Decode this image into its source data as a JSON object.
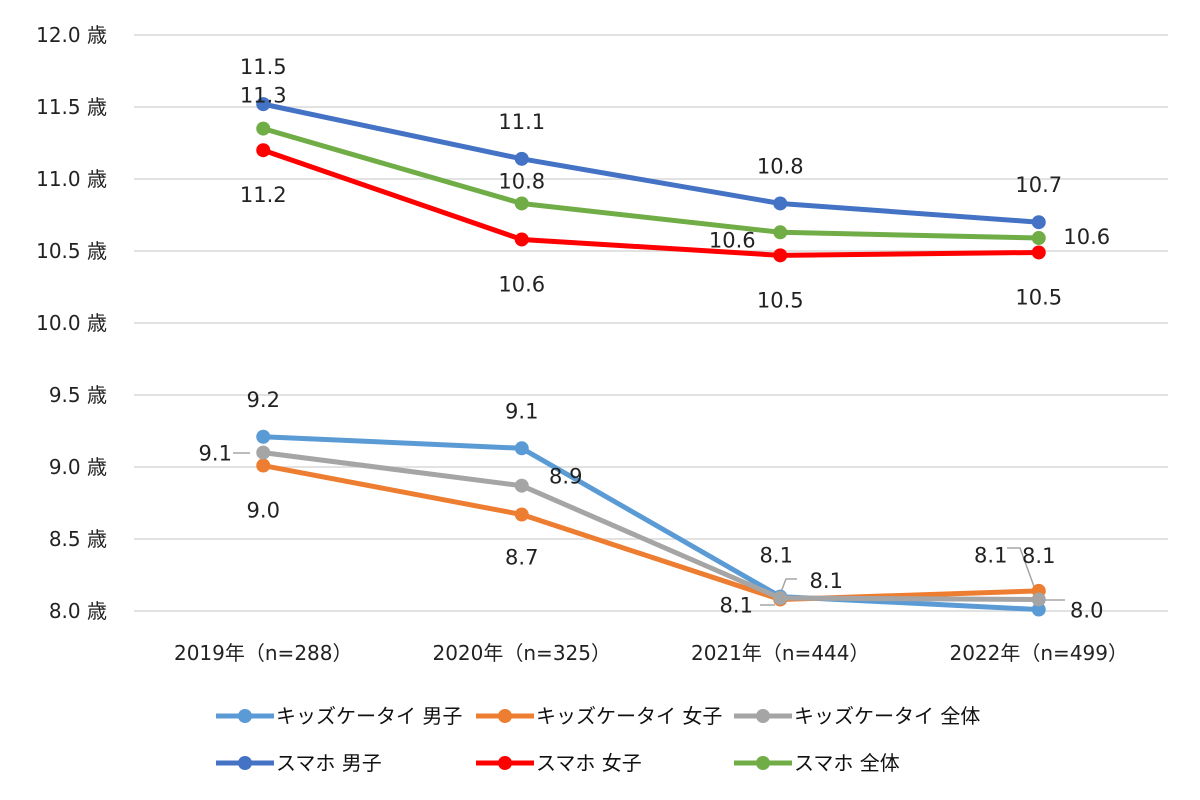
{
  "chart_data": {
    "type": "line",
    "title": "",
    "xlabel": "",
    "ylabel": "",
    "y_unit_suffix": " 歳",
    "ylim": [
      8.0,
      12.0
    ],
    "y_ticks": [
      "8.0 歳",
      "8.5 歳",
      "9.0 歳",
      "9.5 歳",
      "10.0 歳",
      "10.5 歳",
      "11.0 歳",
      "11.5 歳",
      "12.0 歳"
    ],
    "y_tick_values": [
      8.0,
      8.5,
      9.0,
      9.5,
      10.0,
      10.5,
      11.0,
      11.5,
      12.0
    ],
    "grid": true,
    "legend_position": "bottom",
    "categories": [
      "2019年（n=288）",
      "2020年（n=325）",
      "2021年（n=444）",
      "2022年（n=499）"
    ],
    "series": [
      {
        "name": "キッズケータイ 男子",
        "color": "#5B9BD5",
        "values": [
          9.21,
          9.13,
          8.1,
          8.01
        ],
        "labels": [
          "9.2",
          "9.1",
          "8.1",
          "8.0"
        ]
      },
      {
        "name": "キッズケータイ 女子",
        "color": "#ED7D31",
        "values": [
          9.01,
          8.67,
          8.08,
          8.14
        ],
        "labels": [
          "9.0",
          "8.7",
          "8.1",
          "8.1"
        ]
      },
      {
        "name": "キッズケータイ 全体",
        "color": "#A5A5A5",
        "values": [
          9.1,
          8.87,
          8.09,
          8.08
        ],
        "labels": [
          "9.1",
          "8.9",
          "8.1",
          "8.1"
        ]
      },
      {
        "name": "スマホ 男子",
        "color": "#4472C4",
        "values": [
          11.52,
          11.14,
          10.83,
          10.7
        ],
        "labels": [
          "11.5",
          "11.1",
          "10.8",
          "10.7"
        ]
      },
      {
        "name": "スマホ 女子",
        "color": "#FF0000",
        "values": [
          11.2,
          10.58,
          10.47,
          10.49
        ],
        "labels": [
          "11.2",
          "10.6",
          "10.5",
          "10.5"
        ]
      },
      {
        "name": "スマホ 全体",
        "color": "#70AD47",
        "values": [
          11.35,
          10.83,
          10.63,
          10.59
        ],
        "labels": [
          "11.3",
          "10.8",
          "10.6",
          "10.6"
        ]
      }
    ]
  }
}
